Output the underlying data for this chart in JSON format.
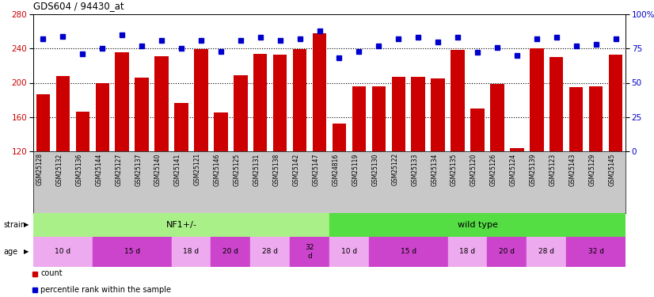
{
  "title": "GDS604 / 94430_at",
  "samples": [
    "GSM25128",
    "GSM25132",
    "GSM25136",
    "GSM25144",
    "GSM25127",
    "GSM25137",
    "GSM25140",
    "GSM25141",
    "GSM25121",
    "GSM25146",
    "GSM25125",
    "GSM25131",
    "GSM25138",
    "GSM25142",
    "GSM25147",
    "GSM24816",
    "GSM25119",
    "GSM25130",
    "GSM25122",
    "GSM25133",
    "GSM25134",
    "GSM25135",
    "GSM25120",
    "GSM25126",
    "GSM25124",
    "GSM25139",
    "GSM25123",
    "GSM25143",
    "GSM25129",
    "GSM25145"
  ],
  "counts": [
    187,
    208,
    166,
    200,
    236,
    206,
    231,
    176,
    239,
    165,
    209,
    234,
    233,
    239,
    258,
    152,
    196,
    196,
    207,
    207,
    205,
    238,
    170,
    199,
    124,
    240,
    230,
    195,
    196,
    233
  ],
  "percentiles": [
    82,
    84,
    71,
    75,
    85,
    77,
    81,
    75,
    81,
    73,
    81,
    83,
    81,
    82,
    88,
    68,
    73,
    77,
    82,
    83,
    80,
    83,
    72,
    76,
    70,
    82,
    83,
    77,
    78,
    82
  ],
  "ymin": 120,
  "ymax": 280,
  "yticks_left": [
    120,
    160,
    200,
    240,
    280
  ],
  "yticks_right": [
    0,
    25,
    50,
    75,
    100
  ],
  "bar_color": "#cc0000",
  "dot_color": "#0000cc",
  "xtick_bg": "#c8c8c8",
  "strain_nf1_color": "#aaf088",
  "strain_wt_color": "#55dd44",
  "age_light_color": "#eeaaee",
  "age_dark_color": "#cc44cc",
  "strain_groups": [
    {
      "label": "NF1+/-",
      "start": 0,
      "end": 15
    },
    {
      "label": "wild type",
      "start": 15,
      "end": 30
    }
  ],
  "age_groups": [
    {
      "label": "10 d",
      "start": 0,
      "end": 3,
      "dark": false
    },
    {
      "label": "15 d",
      "start": 3,
      "end": 7,
      "dark": true
    },
    {
      "label": "18 d",
      "start": 7,
      "end": 9,
      "dark": false
    },
    {
      "label": "20 d",
      "start": 9,
      "end": 11,
      "dark": true
    },
    {
      "label": "28 d",
      "start": 11,
      "end": 13,
      "dark": false
    },
    {
      "label": "32\nd",
      "start": 13,
      "end": 15,
      "dark": true
    },
    {
      "label": "10 d",
      "start": 15,
      "end": 17,
      "dark": false
    },
    {
      "label": "15 d",
      "start": 17,
      "end": 21,
      "dark": true
    },
    {
      "label": "18 d",
      "start": 21,
      "end": 23,
      "dark": false
    },
    {
      "label": "20 d",
      "start": 23,
      "end": 25,
      "dark": true
    },
    {
      "label": "28 d",
      "start": 25,
      "end": 27,
      "dark": false
    },
    {
      "label": "32 d",
      "start": 27,
      "end": 30,
      "dark": true
    }
  ],
  "pct_min": 0,
  "pct_max": 100,
  "dotted_lines": [
    160,
    200,
    240
  ],
  "fig_w": 8.26,
  "fig_h": 3.75,
  "dpi": 100
}
